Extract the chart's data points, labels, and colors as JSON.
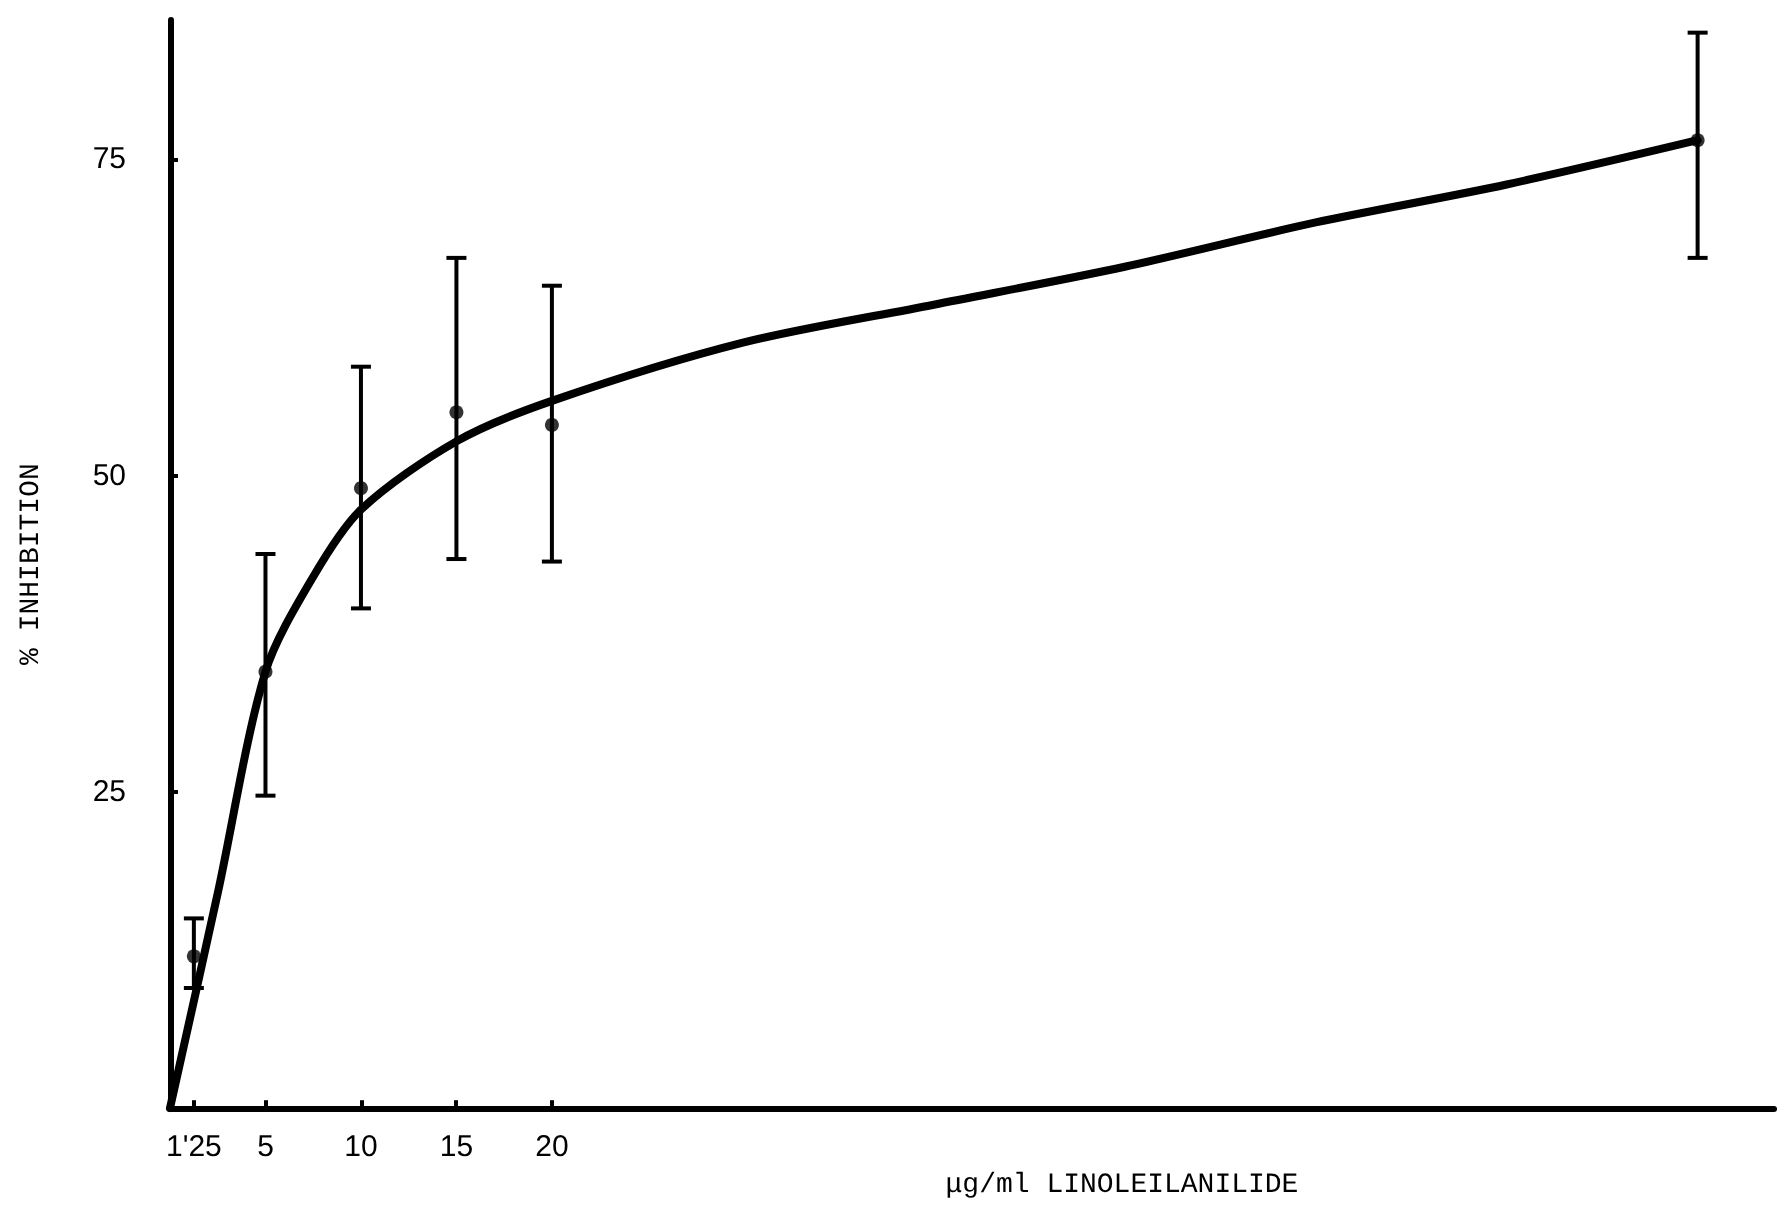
{
  "chart_data": {
    "type": "scatter",
    "xlabel": "μg/ml LINOLEILANILIDE",
    "ylabel": "% INHIBITION",
    "xlim": [
      0,
      84
    ],
    "xticks": [
      {
        "value": 1.25,
        "label": "1'25"
      },
      5,
      10,
      15,
      20
    ],
    "ylim": [
      0,
      86
    ],
    "yticks": [
      25,
      50,
      75
    ],
    "grid": false,
    "series": [
      {
        "type": "line",
        "color": "#000000",
        "marker": "none",
        "line_style": "solid",
        "x": [
          0,
          2.5,
          5,
          7.5,
          10,
          15,
          20,
          30,
          40,
          50,
          60,
          70,
          80
        ],
        "values": [
          0,
          17,
          34.5,
          42,
          47.3,
          52.7,
          55.9,
          60.5,
          63.5,
          66.5,
          70,
          73,
          76.5
        ]
      },
      {
        "color": "#000000",
        "marker": "circle",
        "x": [
          1.25,
          5,
          10,
          15,
          20,
          80
        ],
        "values": [
          12,
          34.5,
          49,
          55,
          54,
          76.5
        ],
        "errors": [
          [
            9.5,
            15
          ],
          [
            24.7,
            43.8
          ],
          [
            39.5,
            58.6
          ],
          [
            43.4,
            67.2
          ],
          [
            43.2,
            65
          ],
          [
            67.2,
            85
          ]
        ]
      }
    ]
  }
}
